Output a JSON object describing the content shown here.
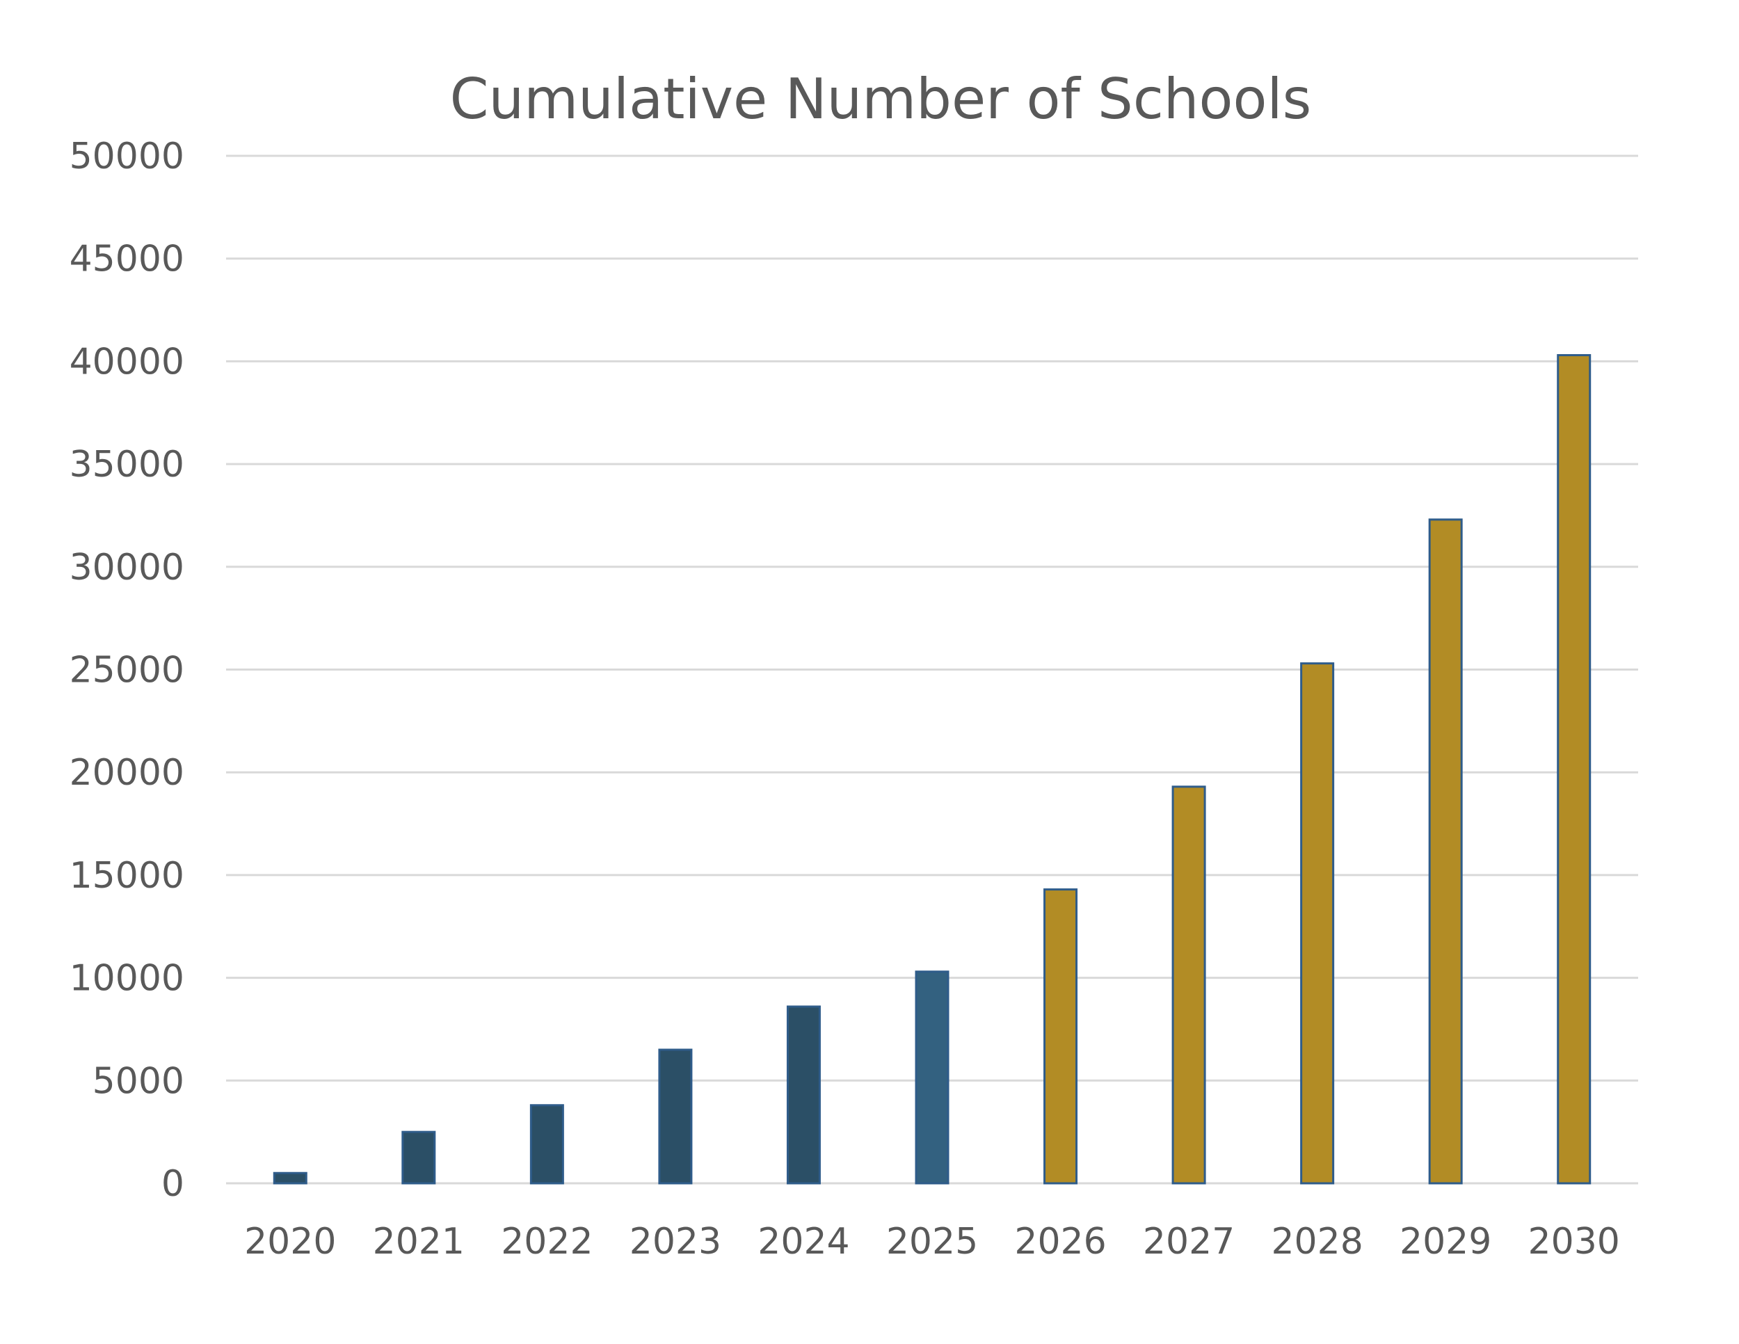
{
  "chart_data": {
    "type": "bar",
    "title": "Cumulative Number of Schools",
    "xlabel": "",
    "ylabel": "",
    "categories": [
      "2020",
      "2021",
      "2022",
      "2023",
      "2024",
      "2025",
      "2026",
      "2027",
      "2028",
      "2029",
      "2030"
    ],
    "values": [
      500,
      2500,
      3800,
      6500,
      8600,
      10300,
      14300,
      19300,
      25300,
      32300,
      40300
    ],
    "bar_colors": [
      "#2b4f66",
      "#2b4f66",
      "#2b4f66",
      "#2b4f66",
      "#2b4f66",
      "#336180",
      "#b28c25",
      "#b28c25",
      "#b28c25",
      "#b28c25",
      "#b28c25"
    ],
    "bar_edge_color": "#2f5c8a",
    "ylim": [
      0,
      50000
    ],
    "yticks": [
      "0",
      "5000",
      "10000",
      "15000",
      "20000",
      "25000",
      "30000",
      "35000",
      "40000",
      "45000",
      "50000"
    ],
    "grid": true,
    "legend": "none"
  }
}
